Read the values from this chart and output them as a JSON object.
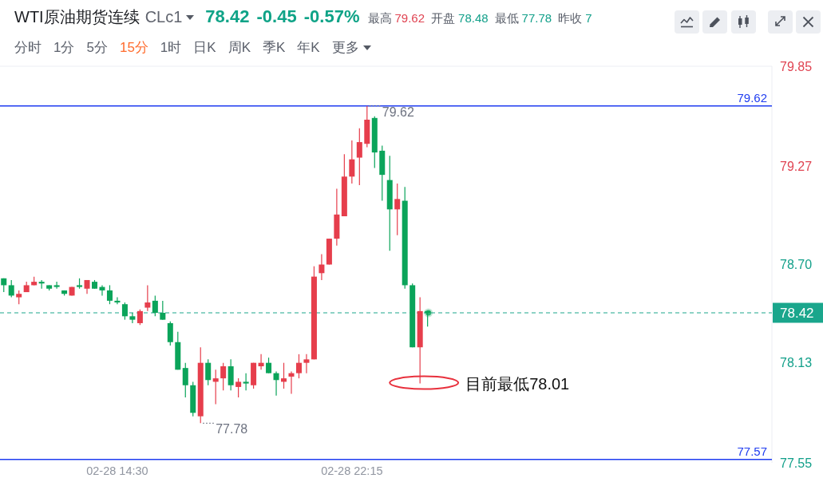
{
  "chart_data": {
    "type": "candlestick",
    "title": "WTI原油期货连续 CLc1",
    "subtitle": "78.42 -0.45 -0.57%",
    "categories": [
      null,
      null,
      null,
      null,
      null,
      null,
      null,
      null,
      null,
      null,
      null,
      null,
      null,
      null,
      null,
      "02-28 14:30",
      null,
      null,
      null,
      null,
      null,
      null,
      null,
      null,
      null,
      null,
      null,
      null,
      null,
      null,
      null,
      null,
      null,
      null,
      null,
      null,
      null,
      null,
      null,
      null,
      null,
      null,
      null,
      null,
      null,
      null,
      "02-28 22:15",
      null,
      null,
      null,
      null,
      null,
      null,
      null,
      null,
      null,
      null,
      null,
      null,
      null,
      null,
      null,
      null,
      null,
      null,
      null,
      null,
      null,
      null,
      null,
      null,
      null,
      null,
      null,
      null,
      null,
      null,
      null,
      null,
      null,
      null,
      null,
      null,
      null,
      null,
      null,
      null,
      null,
      null,
      null,
      null,
      null,
      null,
      null,
      null,
      null,
      null,
      null,
      null,
      null,
      null,
      null
    ],
    "ohlc": [
      [
        78.62,
        78.62,
        78.54,
        78.58
      ],
      [
        78.58,
        78.61,
        78.51,
        78.52
      ],
      [
        78.51,
        78.55,
        78.47,
        78.53
      ],
      [
        78.54,
        78.6,
        78.54,
        78.58
      ],
      [
        78.58,
        78.63,
        78.58,
        78.6
      ],
      [
        78.6,
        78.61,
        78.56,
        78.59
      ],
      [
        78.58,
        78.58,
        78.55,
        78.56
      ],
      [
        78.58,
        78.6,
        78.56,
        78.57
      ],
      [
        78.55,
        78.55,
        78.52,
        78.53
      ],
      [
        78.52,
        78.57,
        78.52,
        78.57
      ],
      [
        78.58,
        78.62,
        78.56,
        78.57
      ],
      [
        78.56,
        78.61,
        78.53,
        78.61
      ],
      [
        78.6,
        78.61,
        78.56,
        78.56
      ],
      [
        78.57,
        78.58,
        78.52,
        78.55
      ],
      [
        78.55,
        78.58,
        78.47,
        78.49
      ],
      [
        78.49,
        78.51,
        78.47,
        78.48
      ],
      [
        78.47,
        78.48,
        78.38,
        78.4
      ],
      [
        78.4,
        78.42,
        78.36,
        78.38
      ],
      [
        78.36,
        78.44,
        78.35,
        78.43
      ],
      [
        78.45,
        78.58,
        78.43,
        78.48
      ],
      [
        78.49,
        78.52,
        78.4,
        78.42
      ],
      [
        78.42,
        78.49,
        78.38,
        78.38
      ],
      [
        78.36,
        78.37,
        78.23,
        78.25
      ],
      [
        78.25,
        78.31,
        78.09,
        78.09
      ],
      [
        78.1,
        78.13,
        77.93,
        78.0
      ],
      [
        78.0,
        78.02,
        77.82,
        77.84
      ],
      [
        77.82,
        78.22,
        77.78,
        78.13
      ],
      [
        78.13,
        78.15,
        78.0,
        78.03
      ],
      [
        78.02,
        78.09,
        77.89,
        78.04
      ],
      [
        78.04,
        78.13,
        77.97,
        78.11
      ],
      [
        78.11,
        78.15,
        77.97,
        78.0
      ],
      [
        77.99,
        78.04,
        77.93,
        78.02
      ],
      [
        78.02,
        78.07,
        77.97,
        78.01
      ],
      [
        78.0,
        78.13,
        77.98,
        78.13
      ],
      [
        78.11,
        78.18,
        78.09,
        78.13
      ],
      [
        78.13,
        78.16,
        78.07,
        78.07
      ],
      [
        78.07,
        78.08,
        77.94,
        78.03
      ],
      [
        78.02,
        78.13,
        77.98,
        78.04
      ],
      [
        78.05,
        78.08,
        77.95,
        78.07
      ],
      [
        78.07,
        78.18,
        78.04,
        78.13
      ],
      [
        78.13,
        78.18,
        78.07,
        78.15
      ],
      [
        78.15,
        78.69,
        78.15,
        78.63
      ],
      [
        78.65,
        78.76,
        78.61,
        78.7
      ],
      [
        78.7,
        78.85,
        78.7,
        78.85
      ],
      [
        78.85,
        79.14,
        78.81,
        78.99
      ],
      [
        78.98,
        79.34,
        78.98,
        79.21
      ],
      [
        79.21,
        79.42,
        79.17,
        79.31
      ],
      [
        79.32,
        79.49,
        79.16,
        79.41
      ],
      [
        79.4,
        79.62,
        79.38,
        79.54
      ],
      [
        79.55,
        79.56,
        79.26,
        79.35
      ],
      [
        79.36,
        79.39,
        79.07,
        79.22
      ],
      [
        79.19,
        79.33,
        78.78,
        79.02
      ],
      [
        79.02,
        79.17,
        78.87,
        79.08
      ],
      [
        79.07,
        79.15,
        78.56,
        78.58
      ],
      [
        78.58,
        78.59,
        78.22,
        78.22
      ],
      [
        78.22,
        78.51,
        78.01,
        78.43
      ],
      [
        78.43,
        78.43,
        78.34,
        78.42
      ],
      null,
      null,
      null,
      null,
      null,
      null,
      null,
      null,
      null,
      null,
      null,
      null,
      null,
      null,
      null,
      null,
      null,
      null,
      null,
      null,
      null,
      null,
      null,
      null,
      null,
      null,
      null,
      null,
      null,
      null,
      null,
      null,
      null,
      null,
      null,
      null,
      null,
      null,
      null,
      null,
      null,
      null,
      null,
      null,
      null
    ],
    "colors": [
      "#0ba45a",
      "#0ba45a",
      "#e63e4c",
      "#e63e4c",
      "#e63e4c",
      "#0ba45a",
      "#0ba45a",
      "#0ba45a",
      "#0ba45a",
      "#e63e4c",
      "#0ba45a",
      "#e63e4c",
      "#0ba45a",
      "#0ba45a",
      "#0ba45a",
      "#0ba45a",
      "#0ba45a",
      "#0ba45a",
      "#e63e4c",
      "#e63e4c",
      "#0ba45a",
      "#0ba45a",
      "#0ba45a",
      "#0ba45a",
      "#0ba45a",
      "#0ba45a",
      "#e63e4c",
      "#0ba45a",
      "#e63e4c",
      "#e63e4c",
      "#0ba45a",
      "#e63e4c",
      "#0ba45a",
      "#e63e4c",
      "#e63e4c",
      "#0ba45a",
      "#0ba45a",
      "#e63e4c",
      "#e63e4c",
      "#e63e4c",
      "#e63e4c",
      "#e63e4c",
      "#e63e4c",
      "#e63e4c",
      "#e63e4c",
      "#e63e4c",
      "#e63e4c",
      "#e63e4c",
      "#e63e4c",
      "#0ba45a",
      "#0ba45a",
      "#0ba45a",
      "#e63e4c",
      "#0ba45a",
      "#0ba45a",
      "#e63e4c",
      "#0ba45a",
      null,
      null,
      null,
      null,
      null,
      null,
      null,
      null,
      null,
      null,
      null,
      null,
      null,
      null,
      null,
      null,
      null,
      null,
      null,
      null,
      null,
      null,
      null,
      null,
      null,
      null,
      null,
      null,
      null,
      null,
      null,
      null,
      null,
      null,
      null,
      null,
      null,
      null,
      null,
      null,
      null,
      null,
      null,
      null,
      null
    ],
    "ylim": [
      77.55,
      79.85
    ],
    "yticks": [
      77.55,
      78.13,
      {
        "value": 78.7,
        "label": "78.70"
      },
      79.27,
      79.85
    ],
    "ref_lines": [
      {
        "axis": "y",
        "value": 79.62,
        "label": "79.62",
        "color": "#1f3cf0"
      },
      {
        "axis": "y",
        "value": 77.57,
        "label": "77.57",
        "color": "#1f3cf0"
      },
      {
        "axis": "y",
        "value": 78.42,
        "label": "78.42",
        "color": "#1aa68c",
        "line_style": "dashed"
      }
    ],
    "annotations": [
      "最高 79.62",
      "开盘 78.48",
      "最低 77.78",
      "昨收 7",
      "分时",
      "1分",
      "5分",
      "15分",
      "1时",
      "日K",
      "周K",
      "季K",
      "年K",
      "更多",
      "79.62",
      "77.78",
      "目前最低78.01"
    ]
  }
}
